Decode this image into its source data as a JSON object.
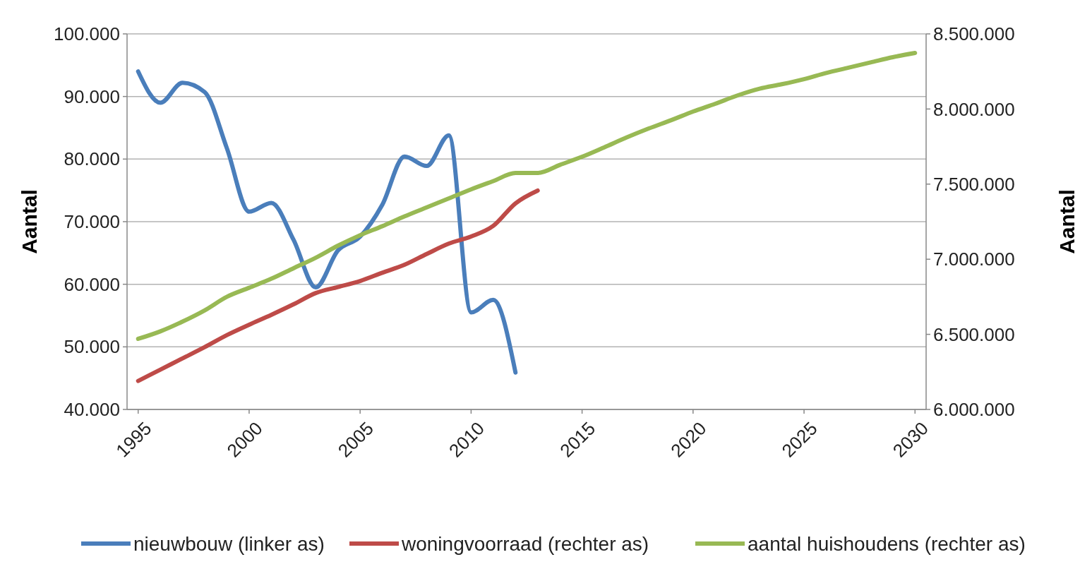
{
  "chart_data": {
    "type": "line",
    "ylabel": "Aantal",
    "y2label": "Aantal",
    "x": [
      1995,
      1996,
      1997,
      1998,
      1999,
      2000,
      2001,
      2002,
      2003,
      2004,
      2005,
      2006,
      2007,
      2008,
      2009,
      2010,
      2011,
      2012,
      2013,
      2014,
      2015,
      2016,
      2017,
      2018,
      2019,
      2020,
      2021,
      2022,
      2023,
      2024,
      2025,
      2026,
      2027,
      2028,
      2029,
      2030
    ],
    "series": [
      {
        "name": "nieuwbouw (linker as)",
        "color": "#4a7ebb",
        "values": [
          94000,
          89000,
          92200,
          90700,
          81700,
          71600,
          73000,
          67100,
          59500,
          65400,
          67600,
          72700,
          80400,
          78900,
          83800,
          55500,
          57500,
          45900,
          null,
          null,
          null,
          null,
          null,
          null,
          null,
          null,
          null,
          null,
          null,
          null,
          null,
          null,
          null,
          null,
          null,
          null
        ]
      },
      {
        "name": "woningvoorraad (rechter as)",
        "color": "#be4b48",
        "axis": "y2",
        "values": [
          6190000,
          6265000,
          6340000,
          6415000,
          6495000,
          6564000,
          6630000,
          6700000,
          6775000,
          6815000,
          6855000,
          6910000,
          6963000,
          7035000,
          7104000,
          7151000,
          7222000,
          7372000,
          7457000,
          null,
          null,
          null,
          null,
          null,
          null,
          null,
          null,
          null,
          null,
          null,
          null,
          null,
          null,
          null,
          null,
          null
        ]
      },
      {
        "name": "aantal huishoudens (rechter as)",
        "color": "#98b954",
        "axis": "y2",
        "values": [
          6470000,
          6520000,
          6585000,
          6660000,
          6750000,
          6810000,
          6870000,
          6940000,
          7010000,
          7090000,
          7160000,
          7220000,
          7285000,
          7345000,
          7405000,
          7465000,
          7520000,
          7574000,
          7574000,
          7628000,
          7682000,
          7745000,
          7810000,
          7870000,
          7925000,
          7983000,
          8035000,
          8090000,
          8135000,
          8165000,
          8199000,
          8240000,
          8275000,
          8310000,
          8345000,
          8373000
        ]
      }
    ],
    "xlim": [
      1994.5,
      2030.5
    ],
    "xticks": [
      1995,
      2000,
      2005,
      2010,
      2015,
      2020,
      2025,
      2030
    ],
    "ylim": [
      40000,
      100000
    ],
    "yticks": [
      {
        "value": 40000,
        "label": "40.000"
      },
      {
        "value": 50000,
        "label": "50.000"
      },
      {
        "value": 60000,
        "label": "60.000"
      },
      {
        "value": 70000,
        "label": "70.000"
      },
      {
        "value": 80000,
        "label": "80.000"
      },
      {
        "value": 90000,
        "label": "90.000"
      },
      {
        "value": 100000,
        "label": "100.000"
      }
    ],
    "y2lim": [
      6000000,
      8500000
    ],
    "y2ticks": [
      {
        "value": 6000000,
        "label": "6.000.000"
      },
      {
        "value": 6500000,
        "label": "6.500.000"
      },
      {
        "value": 7000000,
        "label": "7.000.000"
      },
      {
        "value": 7500000,
        "label": "7.500.000"
      },
      {
        "value": 8000000,
        "label": "8.000.000"
      },
      {
        "value": 8500000,
        "label": "8.500.000"
      }
    ],
    "grid": "y",
    "legend": "bottom",
    "marker": "none",
    "line_style": "solid"
  }
}
